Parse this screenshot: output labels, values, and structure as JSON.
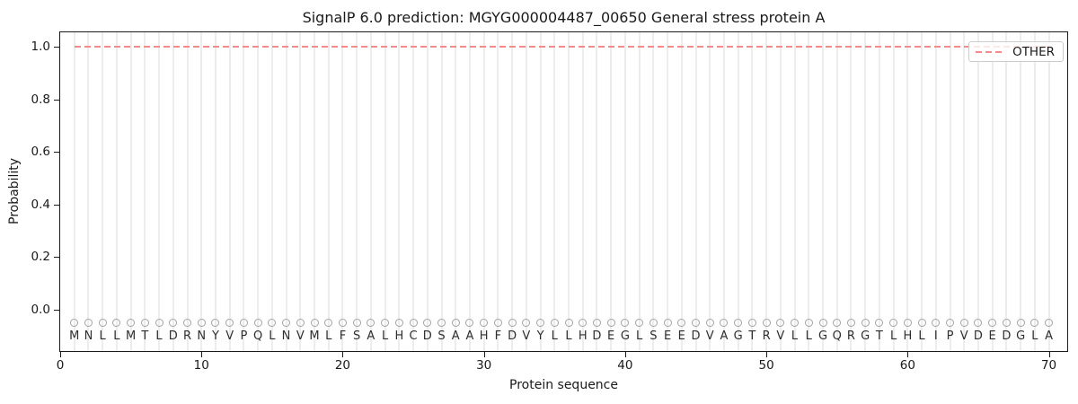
{
  "title": "SignalP 6.0 prediction: MGYG000004487_00650 General stress protein A",
  "axes": {
    "xlabel": "Protein sequence",
    "ylabel": "Probability"
  },
  "legend": {
    "position": "upper right",
    "items": [
      {
        "label": "OTHER",
        "line_style": "dashed",
        "color": "#f28c8c"
      }
    ]
  },
  "chart_data": {
    "type": "line",
    "title": "SignalP 6.0 prediction: MGYG000004487_00650 General stress protein A",
    "xlabel": "Protein sequence",
    "ylabel": "Probability",
    "xlim": [
      0,
      71.3
    ],
    "ylim": [
      -0.157,
      1.055
    ],
    "xticks": [
      0,
      10,
      20,
      30,
      40,
      50,
      60,
      70
    ],
    "yticks": [
      0.0,
      0.2,
      0.4,
      0.6,
      0.8,
      1.0
    ],
    "grid": "vertical light-gray gridline at every residue position 1-70",
    "series": [
      {
        "name": "OTHER",
        "style": "dashed",
        "color": "#f28c8c",
        "x_start": 1,
        "x_end": 70,
        "constant_y": 1.0,
        "note": "probability is a constant 1.0 across all 70 residues"
      }
    ],
    "sequence": "MNLLMTLDRNYVPQLNVMLFSALHCDSAAHFDVYLLHDEGLSEEDVAGTRVLLGQRGTLHLIPVDEDGLA",
    "sequence_length": 70,
    "residue_markers": {
      "marker": "open-circle",
      "marker_y": -0.051,
      "letters_y": -0.104
    }
  },
  "colors": {
    "other_line": "#f28c8c",
    "grid": "#ededed",
    "marker_stroke": "#a3a3a3",
    "letters": "#2e2e2e",
    "frame_and_text": "#1a1a1a",
    "legend_border": "#cccccc",
    "background": "#ffffff"
  }
}
